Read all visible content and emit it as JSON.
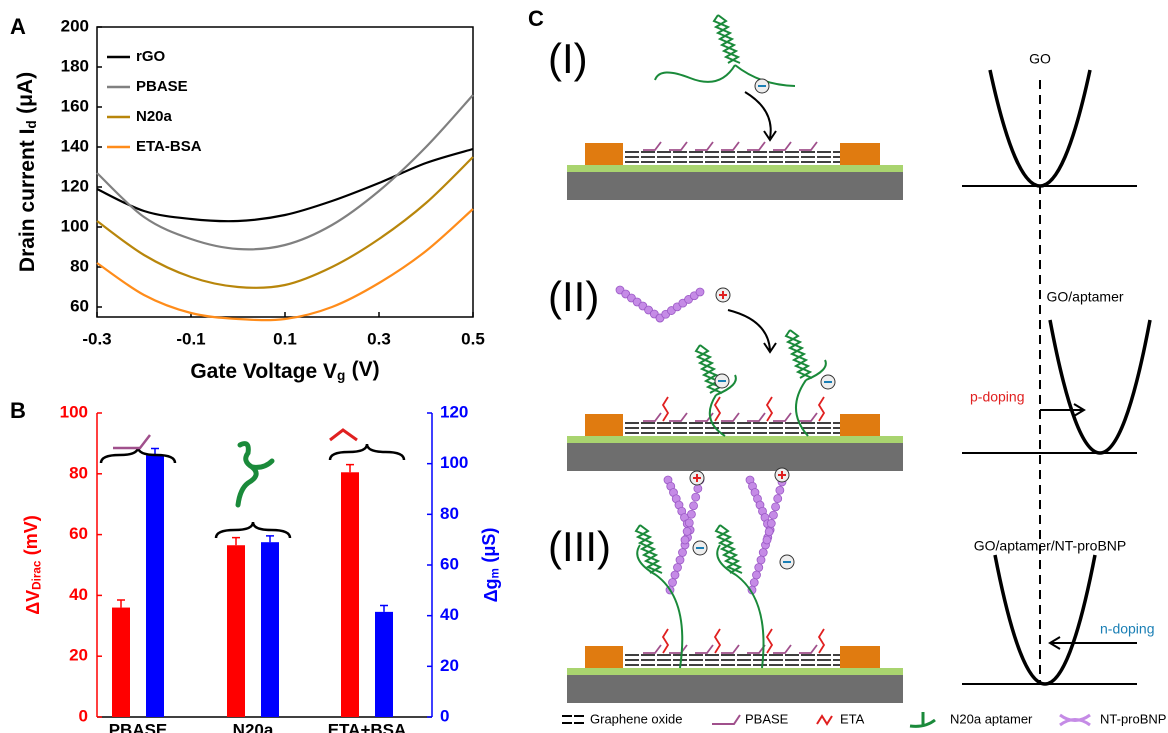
{
  "chart_data": [
    {
      "type": "line",
      "panel_label": "A",
      "xlabel": [
        "Gate Voltage V",
        "g",
        "(V)"
      ],
      "ylabel": [
        "Drain current I",
        "d",
        "(μA)"
      ],
      "x": [
        -0.3,
        -0.2,
        -0.1,
        0,
        0.1,
        0.2,
        0.3,
        0.4,
        0.5
      ],
      "series": [
        {
          "name": "rGO",
          "color": "#000000",
          "values": [
            119,
            108,
            104,
            103,
            106,
            113,
            122,
            132,
            139
          ]
        },
        {
          "name": "PBASE",
          "color": "#808080",
          "values": [
            127,
            105,
            94,
            89,
            91,
            101,
            118,
            140,
            166
          ]
        },
        {
          "name": "N20a",
          "color": "#b8860b",
          "values": [
            103,
            86,
            75,
            70,
            71,
            80,
            94,
            112,
            135
          ]
        },
        {
          "name": "ETA-BSA",
          "color": "#ff8c1a",
          "values": [
            82,
            66,
            57,
            54,
            54,
            60,
            72,
            88,
            109
          ]
        }
      ],
      "xlim": [
        -0.3,
        0.5
      ],
      "xticks": [
        -0.3,
        -0.1,
        0.1,
        0.3,
        0.5
      ],
      "ylim": [
        55,
        200
      ],
      "yticks": [
        60,
        80,
        100,
        120,
        140,
        160,
        180,
        200
      ]
    },
    {
      "type": "bar",
      "panel_label": "B",
      "categories": [
        "PBASE",
        "N20a",
        "ETA+BSA"
      ],
      "ylabel": [
        "ΔV",
        "Dirac",
        "(mV)"
      ],
      "y2label": [
        "Δg",
        "m",
        "(μS)"
      ],
      "series": [
        {
          "color": "#ff0000",
          "values": [
            36,
            56.5,
            80.5
          ],
          "errors": [
            2.5,
            2.5,
            2.5
          ]
        },
        {
          "color": "#0000ff",
          "axis": "y2",
          "values": [
            103.5,
            69,
            41.5
          ],
          "errors": [
            2.5,
            2.5,
            2.5
          ]
        }
      ],
      "ylim": [
        0,
        100
      ],
      "yticks": [
        0,
        20,
        40,
        60,
        80,
        100
      ],
      "y2lim": [
        0,
        120
      ],
      "y2ticks": [
        0,
        20,
        40,
        60,
        80,
        100,
        120
      ]
    }
  ],
  "diagram": {
    "panel_label": "C",
    "stages": [
      {
        "label": "(I)",
        "band_label": "GO"
      },
      {
        "label": "(II)",
        "band_label": "GO/aptamer"
      },
      {
        "label": "(III)",
        "band_label": "GO/aptamer/NT-proBNP"
      }
    ],
    "doping": [
      "p-doping",
      "n-doping"
    ],
    "legend": [
      "Graphene oxide",
      "PBASE",
      "ETA",
      "N20a aptamer",
      "NT-proBNP"
    ]
  }
}
